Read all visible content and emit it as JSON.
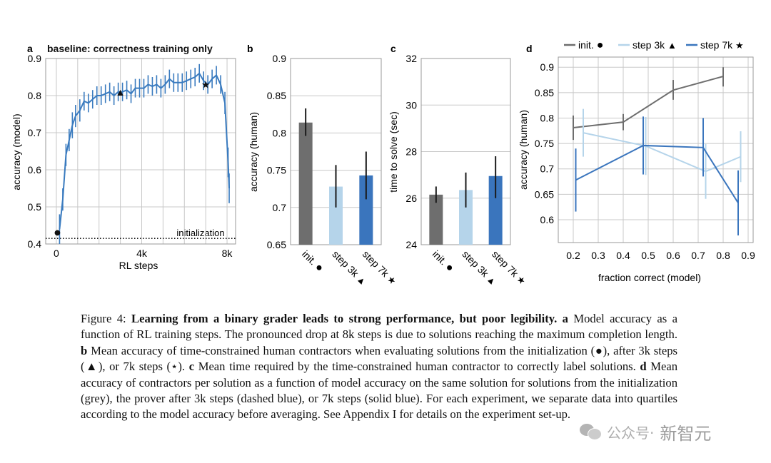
{
  "chart_data": [
    {
      "panel": "a",
      "type": "line",
      "title": "baseline: correctness training only",
      "xlabel": "RL steps",
      "ylabel": "accuracy (model)",
      "xlim": [
        -500,
        8400
      ],
      "ylim": [
        0.4,
        0.9
      ],
      "xticks": [
        0,
        4000,
        8000
      ],
      "xtick_labels": [
        "0",
        "4k",
        "8k"
      ],
      "yticks": [
        0.4,
        0.5,
        0.6,
        0.7,
        0.8,
        0.9
      ],
      "ytick_labels": [
        "0.4",
        "0.5",
        "0.6",
        "0.7",
        "0.8",
        "0.9"
      ],
      "grid": true,
      "series": [
        {
          "color": "#3a7bbf",
          "x": [
            150,
            300,
            450,
            600,
            750,
            900,
            1100,
            1300,
            1500,
            1700,
            1900,
            2100,
            2300,
            2500,
            2700,
            2900,
            3100,
            3300,
            3500,
            3700,
            3900,
            4100,
            4300,
            4500,
            4700,
            4900,
            5100,
            5300,
            5500,
            5700,
            5900,
            6100,
            6300,
            6500,
            6700,
            6900,
            7100,
            7300,
            7500,
            7700,
            7900,
            8050,
            8100
          ],
          "y": [
            0.44,
            0.52,
            0.64,
            0.68,
            0.72,
            0.745,
            0.76,
            0.785,
            0.78,
            0.79,
            0.8,
            0.8,
            0.805,
            0.81,
            0.8,
            0.81,
            0.81,
            0.815,
            0.805,
            0.82,
            0.82,
            0.82,
            0.83,
            0.825,
            0.83,
            0.82,
            0.83,
            0.845,
            0.835,
            0.835,
            0.835,
            0.84,
            0.845,
            0.85,
            0.86,
            0.84,
            0.83,
            0.845,
            0.855,
            0.83,
            0.78,
            0.62,
            0.55
          ],
          "err": [
            0.04,
            0.03,
            0.03,
            0.03,
            0.035,
            0.03,
            0.03,
            0.025,
            0.025,
            0.025,
            0.025,
            0.025,
            0.025,
            0.025,
            0.025,
            0.025,
            0.025,
            0.025,
            0.025,
            0.025,
            0.025,
            0.025,
            0.025,
            0.025,
            0.025,
            0.025,
            0.025,
            0.025,
            0.025,
            0.025,
            0.025,
            0.025,
            0.025,
            0.025,
            0.025,
            0.025,
            0.025,
            0.025,
            0.025,
            0.025,
            0.03,
            0.04,
            0.04
          ]
        }
      ],
      "reference_line": {
        "y": 0.415,
        "style": "dotted",
        "label": "initialization"
      },
      "markers": [
        {
          "symbol": "●",
          "x": 50,
          "y": 0.43
        },
        {
          "symbol": "▲",
          "x": 3000,
          "y": 0.81
        },
        {
          "symbol": "★",
          "x": 7000,
          "y": 0.83
        }
      ]
    },
    {
      "panel": "b",
      "type": "bar",
      "ylabel": "accuracy (human)",
      "ylim": [
        0.65,
        0.9
      ],
      "yticks": [
        0.65,
        0.7,
        0.75,
        0.8,
        0.85,
        0.9
      ],
      "ytick_labels": [
        "0.65",
        "0.7",
        "0.75",
        "0.8",
        "0.85",
        "0.9"
      ],
      "categories": [
        "init.",
        "step 3k",
        "step 7k"
      ],
      "category_symbols": [
        "●",
        "▲",
        "★"
      ],
      "values": [
        0.814,
        0.728,
        0.743
      ],
      "err_low": [
        0.796,
        0.7,
        0.711
      ],
      "err_high": [
        0.833,
        0.757,
        0.775
      ],
      "colors": [
        "#6e6e6e",
        "#b5d4ea",
        "#3a75bd"
      ],
      "grid": true
    },
    {
      "panel": "c",
      "type": "bar",
      "ylabel": "time to solve (sec)",
      "ylim": [
        24,
        32
      ],
      "yticks": [
        24,
        26,
        28,
        30,
        32
      ],
      "ytick_labels": [
        "24",
        "26",
        "28",
        "30",
        "32"
      ],
      "categories": [
        "init.",
        "step 3k",
        "step 7k"
      ],
      "category_symbols": [
        "●",
        "▲",
        "★"
      ],
      "values": [
        26.15,
        26.35,
        26.95
      ],
      "err_low": [
        25.8,
        25.6,
        26.0
      ],
      "err_high": [
        26.5,
        27.1,
        27.8
      ],
      "colors": [
        "#6e6e6e",
        "#b5d4ea",
        "#3a75bd"
      ],
      "grid": true
    },
    {
      "panel": "d",
      "type": "line",
      "xlabel": "fraction correct (model)",
      "ylabel": "accuracy (human)",
      "xlim": [
        0.14,
        0.92
      ],
      "ylim": [
        0.555,
        0.92
      ],
      "xticks": [
        0.2,
        0.3,
        0.4,
        0.5,
        0.6,
        0.7,
        0.8,
        0.9
      ],
      "xtick_labels": [
        "0.2",
        "0.3",
        "0.4",
        "0.5",
        "0.6",
        "0.7",
        "0.8",
        "0.9"
      ],
      "yticks": [
        0.6,
        0.65,
        0.7,
        0.75,
        0.8,
        0.85,
        0.9
      ],
      "ytick_labels": [
        "0.6",
        "0.65",
        "0.7",
        "0.75",
        "0.8",
        "0.85",
        "0.9"
      ],
      "grid": true,
      "legend_position": "top",
      "series": [
        {
          "name": "init.",
          "symbol": "●",
          "color": "#6e6e6e",
          "x": [
            0.2,
            0.4,
            0.6,
            0.8
          ],
          "y": [
            0.781,
            0.792,
            0.855,
            0.882
          ],
          "err_low": [
            0.757,
            0.776,
            0.836,
            0.862
          ],
          "err_high": [
            0.805,
            0.808,
            0.875,
            0.9
          ]
        },
        {
          "name": "step 3k",
          "symbol": "▲",
          "color": "#b5d4ea",
          "x": [
            0.24,
            0.49,
            0.73,
            0.87
          ],
          "y": [
            0.771,
            0.745,
            0.695,
            0.724
          ],
          "err_low": [
            0.724,
            0.688,
            0.641,
            0.674
          ],
          "err_high": [
            0.818,
            0.802,
            0.749,
            0.774
          ]
        },
        {
          "name": "step 7k",
          "symbol": "★",
          "color": "#3a75bd",
          "x": [
            0.21,
            0.48,
            0.72,
            0.86
          ],
          "y": [
            0.678,
            0.746,
            0.742,
            0.633
          ],
          "err_low": [
            0.616,
            0.689,
            0.685,
            0.569
          ],
          "err_high": [
            0.74,
            0.803,
            0.8,
            0.697
          ]
        }
      ]
    }
  ],
  "panel_letters": [
    "a",
    "b",
    "c",
    "d"
  ],
  "caption": {
    "label": "Figure 4:",
    "bold": "Learning from a binary grader leads to strong performance, but poor legibility.",
    "a_letter": "a",
    "a_text": "Model accuracy as a function of RL training steps. The pronounced drop at 8k steps is due to solutions reaching the maximum completion length.",
    "b_letter": "b",
    "b_text": "Mean accuracy of time-constrained human contractors when evaluating solutions from the initialization (●), after 3k steps (▲), or 7k steps (⋆).",
    "c_letter": "c",
    "c_text": "Mean time required by the time-constrained human contractor to correctly label solutions.",
    "d_letter": "d",
    "d_text": "Mean accuracy of contractors per solution as a function of model accuracy on the same solution for solutions from the initialization (grey), the prover after 3k steps (dashed blue), or 7k steps (solid blue). For each experiment, we separate data into quartiles according to the model accuracy before averaging. See Appendix I for details on the experiment set-up."
  },
  "watermark": {
    "icon": "wechat-icon",
    "prefix": "公众号·",
    "text": "新智元"
  }
}
